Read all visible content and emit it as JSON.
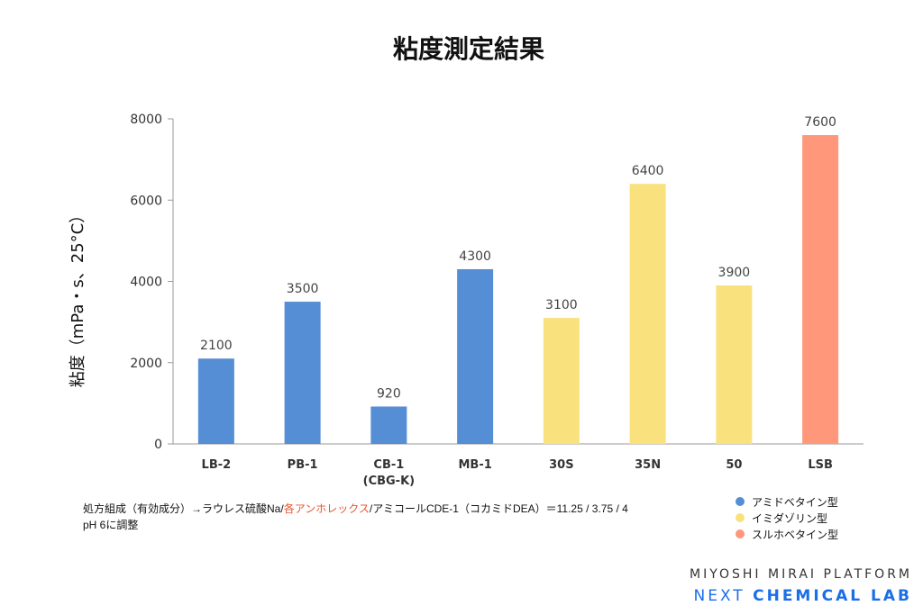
{
  "chart_data": {
    "type": "bar",
    "title": "粘度測定結果",
    "ylabel": "粘度（mPa・s、25°C）",
    "xlabel": "",
    "ylim": [
      0,
      8000
    ],
    "yticks": [
      0,
      2000,
      4000,
      6000,
      8000
    ],
    "grid": false,
    "categories": [
      "LB-2",
      "PB-1",
      "CB-1\n(CBG-K)",
      "MB-1",
      "30S",
      "35N",
      "50",
      "LSB"
    ],
    "values": [
      2100,
      3500,
      920,
      4300,
      3100,
      6400,
      3900,
      7600
    ],
    "groups": [
      "アミドベタイン型",
      "アミドベタイン型",
      "アミドベタイン型",
      "アミドベタイン型",
      "イミダゾリン型",
      "イミダゾリン型",
      "イミダゾリン型",
      "スルホベタイン型"
    ],
    "legend_placement": "bottom-right",
    "legend": [
      {
        "label": "アミドベタイン型",
        "color": "#558ed5"
      },
      {
        "label": "イミダゾリン型",
        "color": "#f9e27d"
      },
      {
        "label": "スルホベタイン型",
        "color": "#ff977a"
      }
    ]
  },
  "note": {
    "line1_a": "処方組成（有効成分）→ラウレス硫酸Na/",
    "line1_hl": "各アンホレックス",
    "line1_b": "/アミコールCDE-1（コカミドDEA）＝11.25 / 3.75 / 4",
    "line2": "pH 6に調整"
  },
  "logo": {
    "line1": "MIYOSHI MIRAI PLATFORM",
    "line2a": "NEXT",
    "line2b": "CHEMICAL LAB"
  }
}
